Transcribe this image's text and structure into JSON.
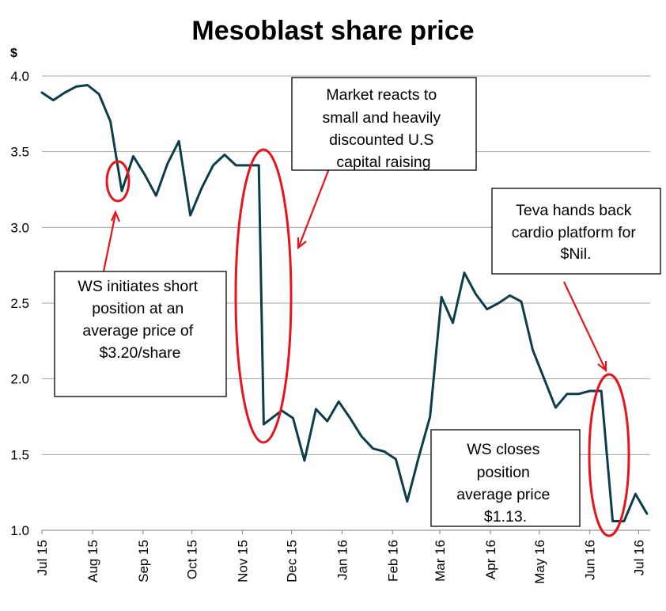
{
  "chart_data": {
    "type": "line",
    "title": "Mesoblast share price",
    "y_unit": "$",
    "ylim": [
      1.0,
      4.0
    ],
    "yticks": [
      "1.0",
      "1.5",
      "2.0",
      "2.5",
      "3.0",
      "3.5",
      "4.0"
    ],
    "grid": true,
    "x_tick_labels": [
      "Jul 15",
      "Aug 15",
      "Sep 15",
      "Oct 15",
      "Nov 15",
      "Dec 15",
      "Jan 16",
      "Feb 16",
      "Mar 16",
      "Apr 16",
      "May 16",
      "Jun 16",
      "Jul 16"
    ],
    "series": [
      {
        "color": "#0b3d4c",
        "x": [
          "2015-07-01",
          "2015-07-08",
          "2015-07-15",
          "2015-07-22",
          "2015-07-29",
          "2015-08-05",
          "2015-08-12",
          "2015-08-19",
          "2015-08-26",
          "2015-09-02",
          "2015-09-09",
          "2015-09-16",
          "2015-09-23",
          "2015-09-30",
          "2015-10-07",
          "2015-10-14",
          "2015-10-21",
          "2015-10-28",
          "2015-11-04",
          "2015-11-11",
          "2015-11-14",
          "2015-11-25",
          "2015-12-02",
          "2015-12-09",
          "2015-12-16",
          "2015-12-23",
          "2015-12-30",
          "2016-01-06",
          "2016-01-13",
          "2016-01-20",
          "2016-01-27",
          "2016-02-03",
          "2016-02-10",
          "2016-02-17",
          "2016-02-24",
          "2016-03-02",
          "2016-03-09",
          "2016-03-16",
          "2016-03-23",
          "2016-03-30",
          "2016-04-06",
          "2016-04-13",
          "2016-04-20",
          "2016-04-27",
          "2016-05-04",
          "2016-05-11",
          "2016-05-18",
          "2016-05-25",
          "2016-06-01",
          "2016-06-08",
          "2016-06-15",
          "2016-06-22",
          "2016-06-29",
          "2016-07-06"
        ],
        "values": [
          3.89,
          3.84,
          3.89,
          3.93,
          3.94,
          3.88,
          3.7,
          3.24,
          3.47,
          3.35,
          3.21,
          3.42,
          3.57,
          3.08,
          3.26,
          3.41,
          3.48,
          3.41,
          3.41,
          3.41,
          1.7,
          1.79,
          1.74,
          1.46,
          1.8,
          1.72,
          1.85,
          1.74,
          1.62,
          1.54,
          1.52,
          1.47,
          1.19,
          1.48,
          1.75,
          2.54,
          2.37,
          2.7,
          2.56,
          2.46,
          2.5,
          2.55,
          2.51,
          2.19,
          2.0,
          1.81,
          1.9,
          1.9,
          1.92,
          1.92,
          1.06,
          1.06,
          1.24,
          1.11
        ]
      }
    ],
    "annotations": [
      {
        "lines": [
          "WS initiates short",
          "position at an",
          "average price of",
          "$3.20/share"
        ]
      },
      {
        "lines": [
          "Market reacts to",
          "small and heavily",
          "discounted U.S",
          "capital raising"
        ]
      },
      {
        "lines": [
          "Teva hands back",
          "cardio platform for",
          "$Nil."
        ]
      },
      {
        "lines": [
          "WS closes",
          "position",
          "average price",
          "$1.13."
        ]
      }
    ]
  },
  "colors": {
    "series": "#0b3d4c",
    "highlight": "#e8141b",
    "grid": "#a6a6a6"
  }
}
